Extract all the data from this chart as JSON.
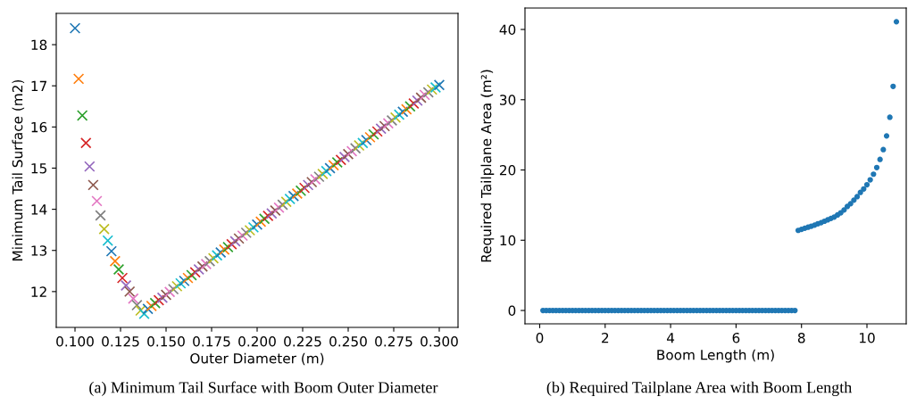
{
  "chart_data": [
    {
      "type": "scatter",
      "xlabel": "Outer Diameter (m)",
      "ylabel": "Minimum Tail Surface (m2)",
      "marker": "cross",
      "grid": false,
      "legend": false,
      "xlim": [
        0.0897,
        0.3103
      ],
      "ylim": [
        11.13,
        18.76
      ],
      "xticks": [
        {
          "value": 0.1,
          "label": "0.100"
        },
        {
          "value": 0.125,
          "label": "0.125"
        },
        {
          "value": 0.15,
          "label": "0.150"
        },
        {
          "value": 0.175,
          "label": "0.175"
        },
        {
          "value": 0.2,
          "label": "0.200"
        },
        {
          "value": 0.225,
          "label": "0.225"
        },
        {
          "value": 0.25,
          "label": "0.250"
        },
        {
          "value": 0.275,
          "label": "0.275"
        },
        {
          "value": 0.3,
          "label": "0.300"
        }
      ],
      "yticks": [
        12,
        13,
        14,
        15,
        16,
        17,
        18
      ],
      "annotations": [
        "(a) Minimum Tail Surface with Boom Outer Diameter"
      ],
      "x": [
        0.1,
        0.102,
        0.104,
        0.106,
        0.108,
        0.11,
        0.112,
        0.114,
        0.116,
        0.118,
        0.12,
        0.122,
        0.124,
        0.126,
        0.128,
        0.13,
        0.132,
        0.134,
        0.136,
        0.138,
        0.14,
        0.142,
        0.144,
        0.146,
        0.148,
        0.15,
        0.152,
        0.154,
        0.156,
        0.158,
        0.16,
        0.162,
        0.164,
        0.166,
        0.168,
        0.17,
        0.172,
        0.174,
        0.176,
        0.178,
        0.18,
        0.182,
        0.184,
        0.186,
        0.188,
        0.19,
        0.192,
        0.194,
        0.196,
        0.198,
        0.2,
        0.202,
        0.204,
        0.206,
        0.208,
        0.21,
        0.212,
        0.214,
        0.216,
        0.218,
        0.22,
        0.222,
        0.224,
        0.226,
        0.228,
        0.23,
        0.232,
        0.234,
        0.236,
        0.238,
        0.24,
        0.242,
        0.244,
        0.246,
        0.248,
        0.25,
        0.252,
        0.254,
        0.256,
        0.258,
        0.26,
        0.262,
        0.264,
        0.266,
        0.268,
        0.27,
        0.272,
        0.274,
        0.276,
        0.278,
        0.28,
        0.282,
        0.284,
        0.286,
        0.288,
        0.29,
        0.292,
        0.294,
        0.296,
        0.298,
        0.3
      ],
      "values": [
        18.4,
        17.17,
        16.28,
        15.61,
        15.04,
        14.59,
        14.2,
        13.85,
        13.52,
        13.24,
        12.98,
        12.74,
        12.54,
        12.33,
        12.15,
        12.0,
        11.83,
        11.67,
        11.54,
        11.46,
        11.58,
        11.65,
        11.72,
        11.79,
        11.85,
        11.92,
        11.99,
        12.06,
        12.13,
        12.2,
        12.26,
        12.33,
        12.4,
        12.47,
        12.54,
        12.61,
        12.67,
        12.74,
        12.81,
        12.88,
        12.95,
        13.02,
        13.08,
        13.15,
        13.22,
        13.29,
        13.36,
        13.43,
        13.49,
        13.56,
        13.63,
        13.7,
        13.77,
        13.84,
        13.9,
        13.97,
        14.04,
        14.11,
        14.18,
        14.25,
        14.32,
        14.38,
        14.45,
        14.52,
        14.59,
        14.66,
        14.73,
        14.79,
        14.86,
        14.93,
        15.0,
        15.07,
        15.14,
        15.2,
        15.27,
        15.34,
        15.41,
        15.48,
        15.55,
        15.61,
        15.68,
        15.75,
        15.82,
        15.89,
        15.96,
        16.02,
        16.09,
        16.16,
        16.23,
        16.3,
        16.37,
        16.43,
        16.5,
        16.57,
        16.64,
        16.71,
        16.78,
        16.84,
        16.91,
        16.96,
        17.02
      ],
      "colors": [
        "#1f77b4",
        "#ff7f0e",
        "#2ca02c",
        "#d62728",
        "#9467bd",
        "#8c564b",
        "#e377c2",
        "#7f7f7f",
        "#bcbd22",
        "#17becf",
        "#1f77b4",
        "#ff7f0e",
        "#2ca02c",
        "#d62728",
        "#9467bd",
        "#8c564b",
        "#e377c2",
        "#7f7f7f",
        "#bcbd22",
        "#17becf",
        "#1f77b4",
        "#ff7f0e",
        "#2ca02c",
        "#d62728",
        "#9467bd",
        "#8c564b",
        "#e377c2",
        "#7f7f7f",
        "#bcbd22",
        "#17becf",
        "#1f77b4",
        "#ff7f0e",
        "#2ca02c",
        "#d62728",
        "#9467bd",
        "#8c564b",
        "#e377c2",
        "#7f7f7f",
        "#bcbd22",
        "#17becf",
        "#1f77b4",
        "#ff7f0e",
        "#2ca02c",
        "#d62728",
        "#9467bd",
        "#8c564b",
        "#e377c2",
        "#7f7f7f",
        "#bcbd22",
        "#17becf",
        "#1f77b4",
        "#ff7f0e",
        "#2ca02c",
        "#d62728",
        "#9467bd",
        "#8c564b",
        "#e377c2",
        "#7f7f7f",
        "#bcbd22",
        "#17becf",
        "#1f77b4",
        "#ff7f0e",
        "#2ca02c",
        "#d62728",
        "#9467bd",
        "#8c564b",
        "#e377c2",
        "#7f7f7f",
        "#bcbd22",
        "#17becf",
        "#1f77b4",
        "#ff7f0e",
        "#2ca02c",
        "#d62728",
        "#9467bd",
        "#8c564b",
        "#e377c2",
        "#7f7f7f",
        "#bcbd22",
        "#17becf",
        "#1f77b4",
        "#ff7f0e",
        "#2ca02c",
        "#d62728",
        "#9467bd",
        "#8c564b",
        "#e377c2",
        "#7f7f7f",
        "#bcbd22",
        "#17becf",
        "#1f77b4",
        "#ff7f0e",
        "#2ca02c",
        "#d62728",
        "#9467bd",
        "#8c564b",
        "#e377c2",
        "#7f7f7f",
        "#bcbd22",
        "#17becf",
        "#1f77b4"
      ]
    },
    {
      "type": "scatter",
      "xlabel": "Boom Length (m)",
      "ylabel": "Required Tailplane Area (m²)",
      "marker": "circle",
      "grid": false,
      "legend": false,
      "xlim": [
        -0.45,
        11.2
      ],
      "ylim": [
        -1.9,
        43.05
      ],
      "xticks": [
        0,
        2,
        4,
        6,
        8,
        10
      ],
      "yticks": [
        0,
        10,
        20,
        30,
        40
      ],
      "annotations": [
        "(b) Required Tailplane Area with Boom Length"
      ],
      "series": [
        {
          "color": "#1f77b4",
          "x": [
            0.1,
            0.2,
            0.3,
            0.4,
            0.5,
            0.6,
            0.7,
            0.8,
            0.9,
            1.0,
            1.1,
            1.2,
            1.3,
            1.4,
            1.5,
            1.6,
            1.7,
            1.8,
            1.9,
            2.0,
            2.1,
            2.2,
            2.3,
            2.4,
            2.5,
            2.6,
            2.7,
            2.8,
            2.9,
            3.0,
            3.1,
            3.2,
            3.3,
            3.4,
            3.5,
            3.6,
            3.7,
            3.8,
            3.9,
            4.0,
            4.1,
            4.2,
            4.3,
            4.4,
            4.5,
            4.6,
            4.7,
            4.8,
            4.9,
            5.0,
            5.1,
            5.2,
            5.3,
            5.4,
            5.5,
            5.6,
            5.7,
            5.8,
            5.9,
            6.0,
            6.1,
            6.2,
            6.3,
            6.4,
            6.5,
            6.6,
            6.7,
            6.8,
            6.9,
            7.0,
            7.1,
            7.2,
            7.3,
            7.4,
            7.5,
            7.6,
            7.7,
            7.8,
            7.9,
            8.0,
            8.1,
            8.2,
            8.3,
            8.4,
            8.5,
            8.6,
            8.7,
            8.8,
            8.9,
            9.0,
            9.1,
            9.2,
            9.3,
            9.4,
            9.5,
            9.6,
            9.7,
            9.8,
            9.9,
            10.0,
            10.1,
            10.2,
            10.3,
            10.4,
            10.5,
            10.6,
            10.7,
            10.8,
            10.9
          ],
          "values": [
            0,
            0,
            0,
            0,
            0,
            0,
            0,
            0,
            0,
            0,
            0,
            0,
            0,
            0,
            0,
            0,
            0,
            0,
            0,
            0,
            0,
            0,
            0,
            0,
            0,
            0,
            0,
            0,
            0,
            0,
            0,
            0,
            0,
            0,
            0,
            0,
            0,
            0,
            0,
            0,
            0,
            0,
            0,
            0,
            0,
            0,
            0,
            0,
            0,
            0,
            0,
            0,
            0,
            0,
            0,
            0,
            0,
            0,
            0,
            0,
            0,
            0,
            0,
            0,
            0,
            0,
            0,
            0,
            0,
            0,
            0,
            0,
            0,
            0,
            0,
            0,
            0,
            0,
            11.4,
            11.55,
            11.7,
            11.85,
            12.0,
            12.15,
            12.35,
            12.5,
            12.7,
            12.9,
            13.1,
            13.3,
            13.6,
            13.9,
            14.3,
            14.8,
            15.2,
            15.7,
            16.2,
            16.8,
            17.3,
            17.9,
            18.6,
            19.4,
            20.35,
            21.5,
            22.9,
            24.85,
            27.5,
            31.9,
            41.1
          ]
        }
      ]
    }
  ]
}
